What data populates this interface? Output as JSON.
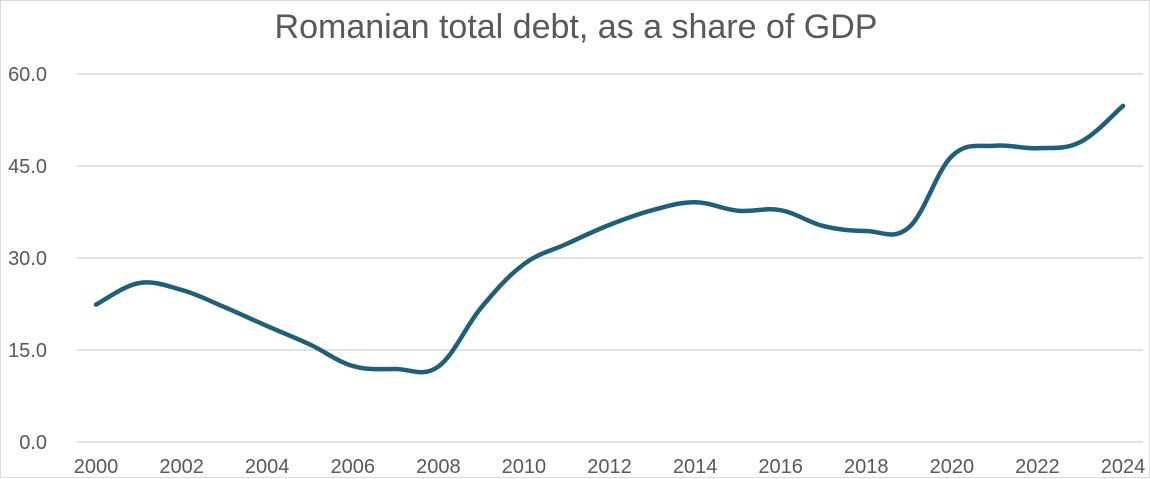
{
  "chart_data": {
    "type": "line",
    "title": "Romanian total debt, as a share of GDP",
    "xlabel": "",
    "ylabel": "",
    "x": [
      2000,
      2001,
      2002,
      2003,
      2004,
      2005,
      2006,
      2007,
      2008,
      2009,
      2010,
      2011,
      2012,
      2013,
      2014,
      2015,
      2016,
      2017,
      2018,
      2019,
      2020,
      2021,
      2022,
      2023,
      2024
    ],
    "x_tick_labels": [
      "2000",
      "2002",
      "2004",
      "2006",
      "2008",
      "2010",
      "2012",
      "2014",
      "2016",
      "2018",
      "2020",
      "2022",
      "2024"
    ],
    "y_tick_labels": [
      "0.0",
      "15.0",
      "30.0",
      "45.0",
      "60.0"
    ],
    "y_ticks": [
      0,
      15,
      30,
      45,
      60
    ],
    "ylim": [
      0,
      60
    ],
    "xlim": [
      2000,
      2024
    ],
    "grid": "horizontal",
    "legend": "none",
    "series": [
      {
        "color": "#1f5f7a",
        "values": [
          22.4,
          25.9,
          24.8,
          22.0,
          18.9,
          15.9,
          12.4,
          11.9,
          12.3,
          21.9,
          29.0,
          32.3,
          35.4,
          37.8,
          39.1,
          37.7,
          37.8,
          35.2,
          34.4,
          35.0,
          46.6,
          48.3,
          47.9,
          48.9,
          54.8
        ]
      }
    ]
  }
}
